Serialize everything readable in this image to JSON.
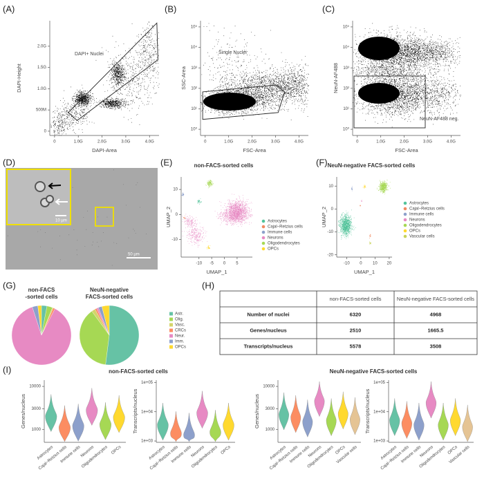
{
  "A": {
    "label": "(A)",
    "gate_label": "DAPI+ Nuclei",
    "x_label": "DAPI-Area",
    "y_label": "DAPI-Height",
    "xlim": [
      -200000000,
      4400000000
    ],
    "xticks": [
      0,
      {
        "value": 1000000000,
        "label": "1.0G"
      },
      {
        "value": 2000000000,
        "label": "2.0G"
      },
      {
        "value": 3000000000,
        "label": "3.0G"
      },
      {
        "value": 4000000000,
        "label": "4.0G"
      }
    ],
    "ylim": [
      -100000000,
      2600000000
    ],
    "yticks": [
      0,
      {
        "value": 500000000,
        "label": "500M"
      },
      {
        "value": 1000000000,
        "label": "1.0G"
      },
      {
        "value": 1500000000,
        "label": "1.5G"
      },
      {
        "value": 2000000000,
        "label": "2.0G"
      }
    ]
  },
  "B": {
    "label": "(B)",
    "gate_label": "Single Nuclei",
    "x_label": "FSC-Area",
    "y_label": "SSC-Area",
    "xlim": [
      -200000000,
      4400000000
    ],
    "xticks": [
      0,
      {
        "value": 1000000000,
        "label": "1.0G"
      },
      {
        "value": 2000000000,
        "label": "2.0G"
      },
      {
        "value": 3000000000,
        "label": "3.0G"
      },
      {
        "value": 4000000000,
        "label": "4.0G"
      }
    ],
    "y_log": true,
    "ylim": [
      0.5,
      200000
    ],
    "yticks": [
      {
        "value": 1,
        "label": "10⁰"
      },
      {
        "value": 10,
        "label": "10¹"
      },
      {
        "value": 100,
        "label": "10²"
      },
      {
        "value": 1000,
        "label": "10³"
      },
      {
        "value": 10000,
        "label": "10⁴"
      },
      {
        "value": 100000,
        "label": "10⁵"
      }
    ]
  },
  "C": {
    "label": "(C)",
    "gate_label": "NeuN-AF488 neg.",
    "x_label": "FSC-Area",
    "y_label": "NeuN-AF488",
    "xlim": [
      -200000000,
      4400000000
    ],
    "xticks": [
      0,
      {
        "value": 1000000000,
        "label": "1.0G"
      },
      {
        "value": 2000000000,
        "label": "2.0G"
      },
      {
        "value": 3000000000,
        "label": "3.0G"
      },
      {
        "value": 4000000000,
        "label": "4.0G"
      }
    ],
    "y_log": true,
    "ylim": [
      0.5,
      200000
    ],
    "yticks": [
      {
        "value": 1,
        "label": "10⁰"
      },
      {
        "value": 10,
        "label": "10¹"
      },
      {
        "value": 100,
        "label": "10²"
      },
      {
        "value": 1000,
        "label": "10³"
      },
      {
        "value": 10000,
        "label": "10⁴"
      },
      {
        "value": 100000,
        "label": "10⁵"
      }
    ]
  },
  "D": {
    "label": "(D)",
    "inset_scale": "10 µm",
    "scale": "50 µm"
  },
  "E": {
    "label": "(E)",
    "title": "non-FACS-sorted cells",
    "x_label": "UMAP_1",
    "y_label": "UMAP_2",
    "xlim": [
      -17,
      11
    ],
    "xticks": [
      -10,
      -5,
      0,
      5
    ],
    "ylim": [
      -17,
      15
    ],
    "yticks": [
      -10,
      0,
      10
    ],
    "legend": [
      {
        "name": "Astrocytes",
        "color": "#52c39a"
      },
      {
        "name": "Cajal−Retzius cells",
        "color": "#f08a61"
      },
      {
        "name": "Immune cells",
        "color": "#8da0cb"
      },
      {
        "name": "Neurons",
        "color": "#e78ac3"
      },
      {
        "name": "Oligodendrocytes",
        "color": "#a6d854"
      },
      {
        "name": "OPCs",
        "color": "#ffd92f"
      }
    ]
  },
  "F": {
    "label": "(F)",
    "title": "NeuN-negative FACS-sorted cells",
    "x_label": "UMAP_1",
    "y_label": "UMAP_2",
    "xlim": [
      -17,
      22
    ],
    "xticks": [
      -10,
      0,
      10,
      20
    ],
    "ylim": [
      -21,
      14
    ],
    "yticks": [
      -20,
      -10,
      0,
      10
    ],
    "legend": [
      {
        "name": "Astrocytes",
        "color": "#52c39a"
      },
      {
        "name": "Cajal−Retzius cells",
        "color": "#f08a61"
      },
      {
        "name": "Immune cells",
        "color": "#8da0cb"
      },
      {
        "name": "Neurons",
        "color": "#e78ac3"
      },
      {
        "name": "Oligodendrocytes",
        "color": "#a6d854"
      },
      {
        "name": "OPCs",
        "color": "#ffd92f"
      },
      {
        "name": "Vascular cells",
        "color": "#c7d35a"
      }
    ]
  },
  "G": {
    "label": "(G)",
    "legend": [
      {
        "name": "Astr.",
        "color": "#66c2a5"
      },
      {
        "name": "Olig.",
        "color": "#a6d854"
      },
      {
        "name": "Vasc.",
        "color": "#d4d46a"
      },
      {
        "name": "CRCs",
        "color": "#fc8d62"
      },
      {
        "name": "Neur.",
        "color": "#e78ac3"
      },
      {
        "name": "Imm.",
        "color": "#8da0cb"
      },
      {
        "name": "OPCs",
        "color": "#ffd92f"
      }
    ],
    "pies": [
      {
        "title_lines": [
          "non-FACS",
          "-sorted cells"
        ],
        "values": [
          3,
          3,
          0.5,
          1,
          87.5,
          3,
          2
        ]
      },
      {
        "title_lines": [
          "NeuN-negative",
          "FACS-sorted cells"
        ],
        "values": [
          52,
          38,
          2,
          1,
          1,
          2,
          4
        ]
      }
    ]
  },
  "H": {
    "label": "(H)",
    "table": {
      "header": [
        "non-FACS-sorted cells",
        "NeuN-negative FACS-sorted cells"
      ],
      "rows": [
        [
          "Number of nuclei",
          6320,
          4968
        ],
        [
          "Genes/nucleus",
          2510,
          1665.5
        ],
        [
          "Transcripts/nucleus",
          5578,
          3508
        ]
      ]
    }
  },
  "I": {
    "label": "(I)",
    "group_titles": [
      "non-FACS-sorted cells",
      "NeuN-negative FACS-sorted cells"
    ],
    "plots": [
      {
        "y_label": "Genes/nucleus",
        "ylim": [
          500,
          14000
        ],
        "yticks": [
          1000,
          3000,
          10000
        ],
        "categories": [
          "Astrocytes",
          "Cajal−Retzius cells",
          "Immune cells",
          "Neurons",
          "Oligodendrocytes",
          "OPCs"
        ],
        "colors": [
          "#66c2a5",
          "#fc8d62",
          "#8da0cb",
          "#e78ac3",
          "#a6d854",
          "#ffd92f"
        ],
        "medians": [
          2000,
          1100,
          1200,
          2800,
          1300,
          1900
        ]
      },
      {
        "y_label": "Transcripts/nucleus",
        "ylim": [
          900,
          120000
        ],
        "yticks": [
          {
            "value": 1000,
            "label": "1e+03"
          },
          {
            "value": 10000,
            "label": "1e+04"
          },
          {
            "value": 100000,
            "label": "1e+05"
          }
        ],
        "categories": [
          "Astrocytes",
          "Cajal−Retzius cells",
          "Immune cells",
          "Neurons",
          "Oligodendrocytes",
          "OPCs"
        ],
        "colors": [
          "#66c2a5",
          "#fc8d62",
          "#8da0cb",
          "#e78ac3",
          "#a6d854",
          "#ffd92f"
        ],
        "medians": [
          3500,
          1800,
          1600,
          9000,
          2000,
          3500
        ]
      },
      {
        "y_label": "Genes/nucleus",
        "ylim": [
          500,
          14000
        ],
        "yticks": [
          1000,
          3000,
          10000
        ],
        "categories": [
          "Astrocytes",
          "Cajal−Retzius cells",
          "Immune cells",
          "Neurons",
          "Oligodendrocytes",
          "OPCs",
          "Vascular cells"
        ],
        "colors": [
          "#66c2a5",
          "#fc8d62",
          "#8da0cb",
          "#e78ac3",
          "#a6d854",
          "#ffd92f",
          "#e5c494"
        ],
        "medians": [
          2200,
          1900,
          1500,
          4500,
          1600,
          2300,
          1700
        ]
      },
      {
        "y_label": "Transcripts/nucleus",
        "ylim": [
          900,
          120000
        ],
        "yticks": [
          {
            "value": 1000,
            "label": "1e+03"
          },
          {
            "value": 10000,
            "label": "1e+04"
          },
          {
            "value": 100000,
            "label": "1e+05"
          }
        ],
        "categories": [
          "Astrocytes",
          "Cajal−Retzius cells",
          "Immune cells",
          "Neurons",
          "Oligodendrocytes",
          "OPCs",
          "Vascular cells"
        ],
        "colors": [
          "#66c2a5",
          "#fc8d62",
          "#8da0cb",
          "#e78ac3",
          "#a6d854",
          "#ffd92f",
          "#e5c494"
        ],
        "medians": [
          5000,
          4000,
          3500,
          20000,
          3500,
          5000,
          3000
        ]
      }
    ]
  }
}
